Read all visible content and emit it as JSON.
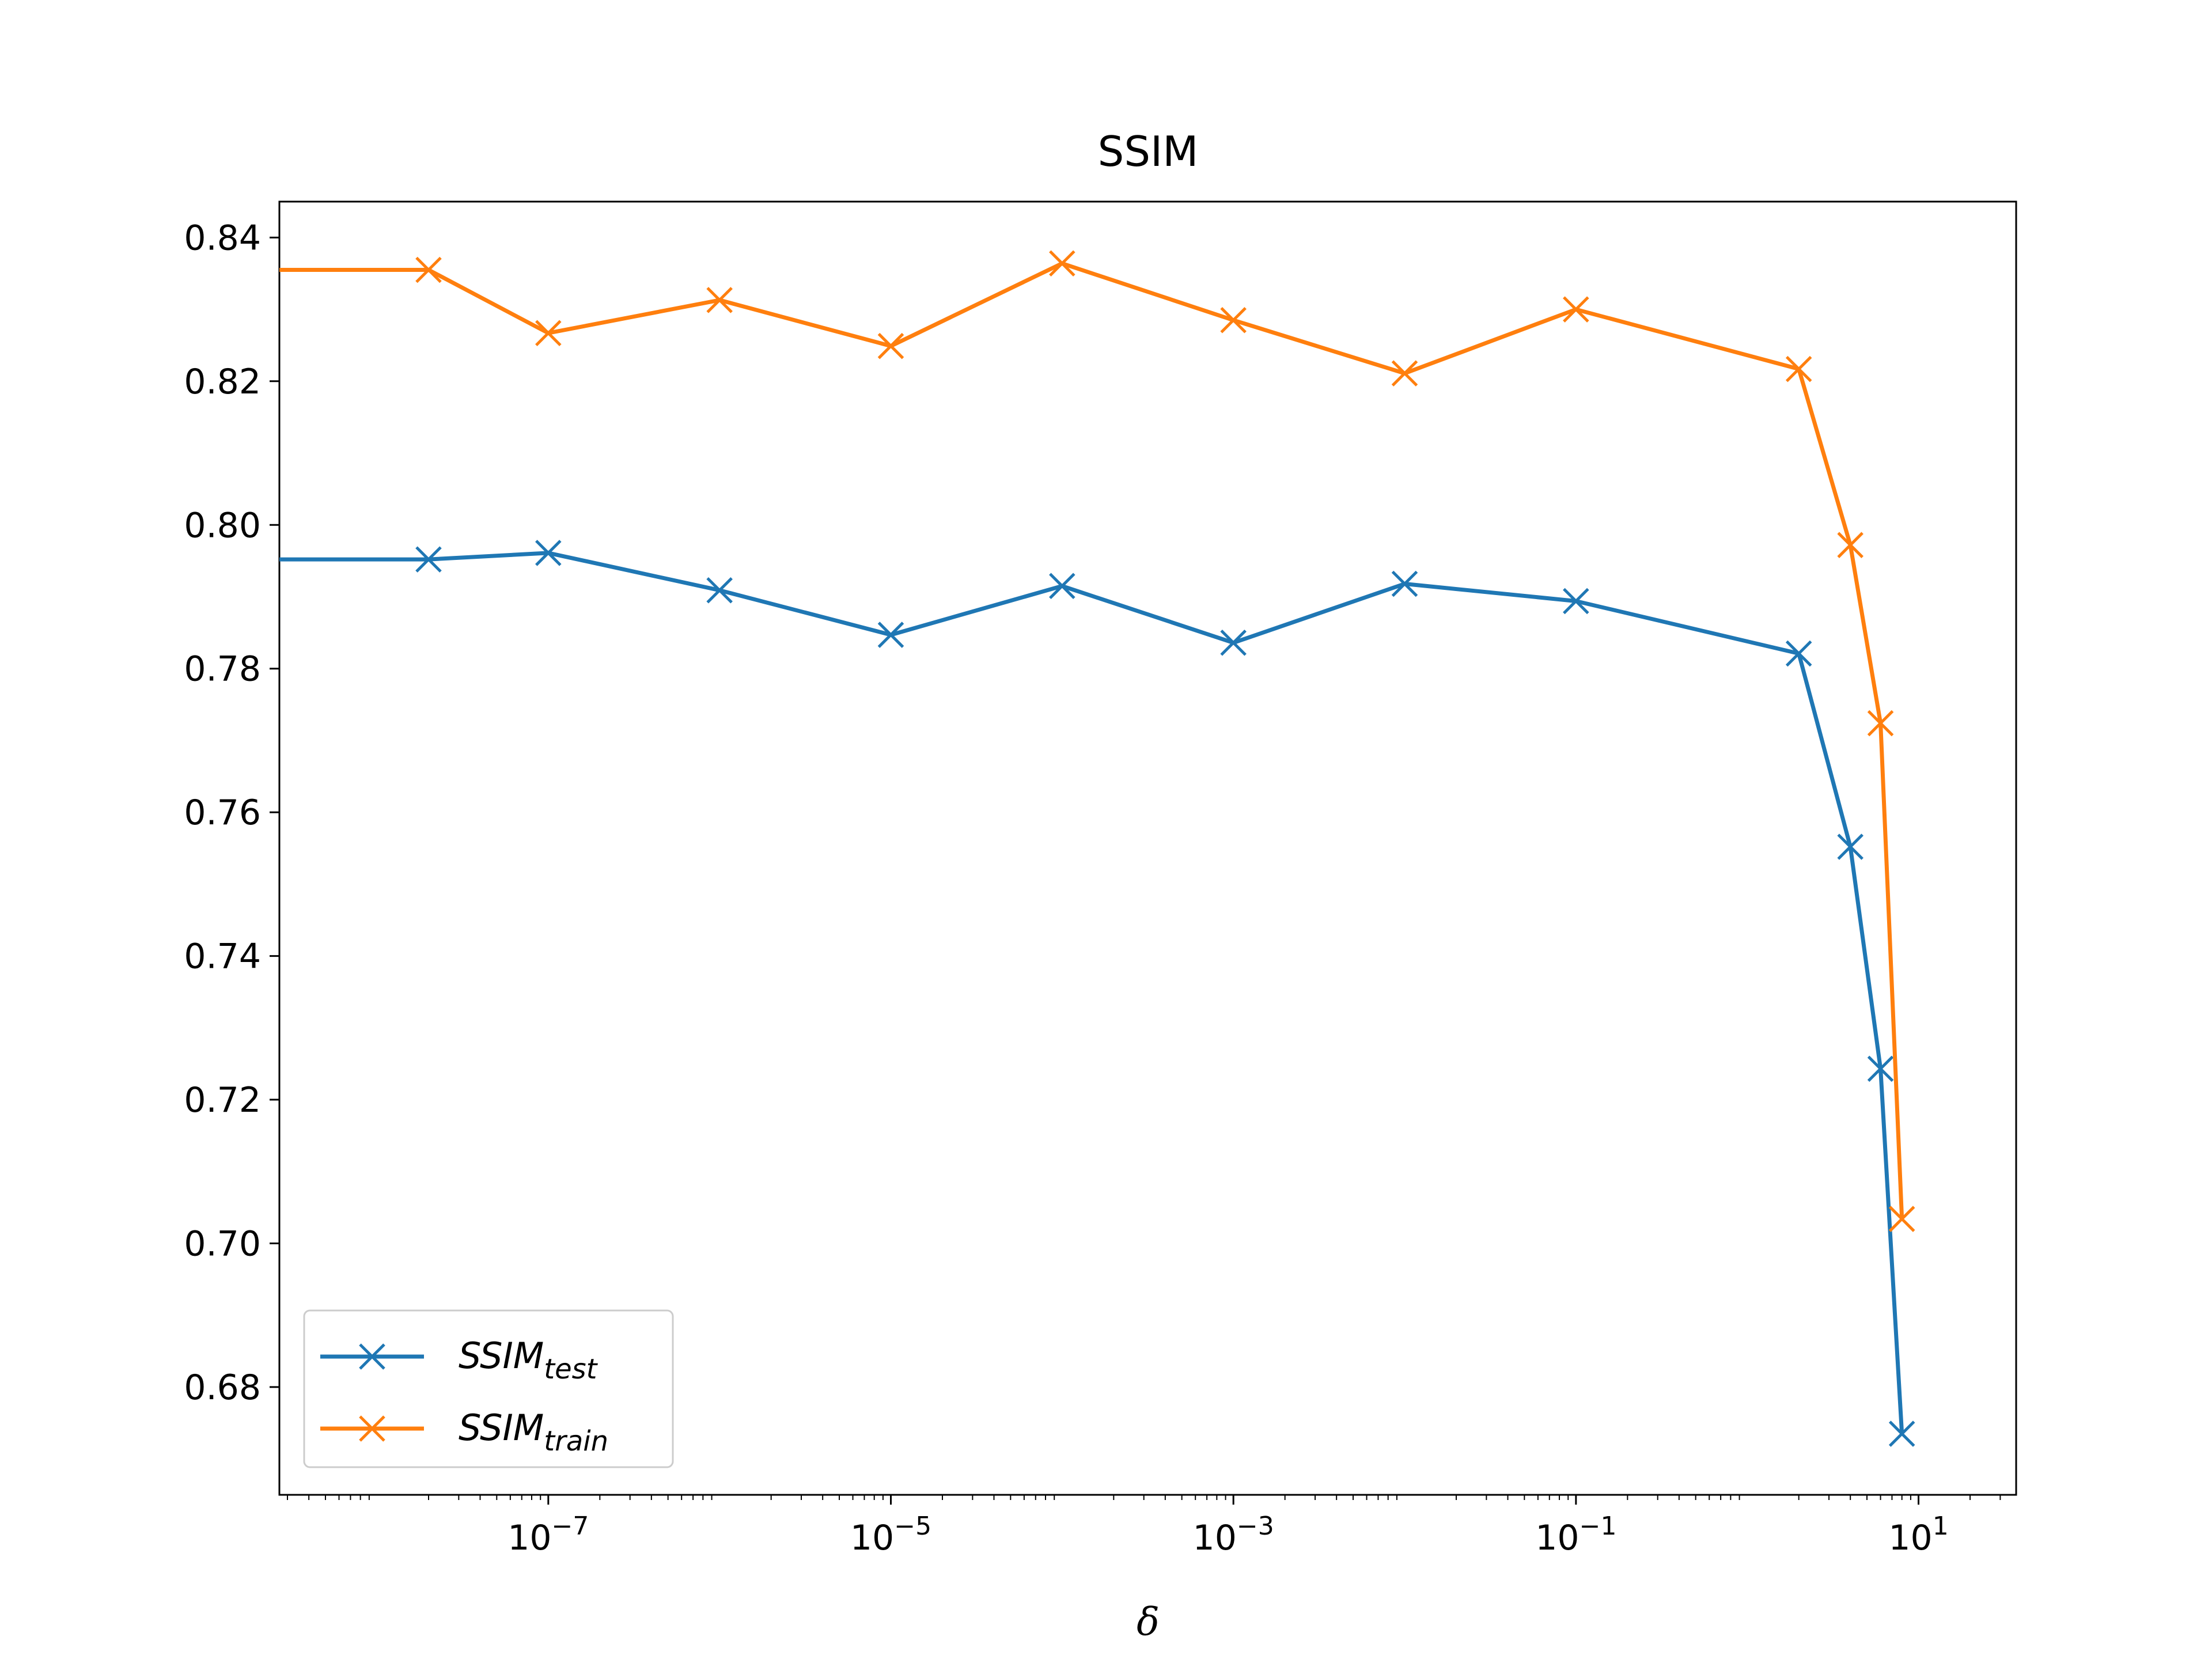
{
  "chart_data": {
    "type": "line",
    "title": "SSIM",
    "xlabel": "δ",
    "ylabel": "",
    "x_scale": "log",
    "xlim_exp": [
      -8.57,
      1.57
    ],
    "ylim": [
      0.665,
      0.845
    ],
    "x_ticks": [
      {
        "exp": -7,
        "label": "10",
        "sup": "−7"
      },
      {
        "exp": -5,
        "label": "10",
        "sup": "−5"
      },
      {
        "exp": -3,
        "label": "10",
        "sup": "−3"
      },
      {
        "exp": -1,
        "label": "10",
        "sup": "−1"
      },
      {
        "exp": 1,
        "label": "10",
        "sup": "1"
      }
    ],
    "y_ticks": [
      0.68,
      0.7,
      0.72,
      0.74,
      0.76,
      0.78,
      0.8,
      0.82,
      0.84
    ],
    "y_tick_labels": [
      "0.68",
      "0.70",
      "0.72",
      "0.74",
      "0.76",
      "0.78",
      "0.80",
      "0.82",
      "0.84"
    ],
    "grid": false,
    "legend_position": "lower-left",
    "x": [
      1e-09,
      2e-08,
      1e-07,
      1e-06,
      1e-05,
      0.0001,
      0.001,
      0.01,
      0.1,
      2,
      4,
      6,
      8
    ],
    "series": [
      {
        "name": "SSIM",
        "name_sub": "test",
        "color": "#1f77b4",
        "marker": "x",
        "values": [
          0.7952,
          0.7952,
          0.7961,
          0.7909,
          0.7847,
          0.7915,
          0.7836,
          0.7918,
          0.7894,
          0.7821,
          0.7552,
          0.7243,
          0.6735
        ]
      },
      {
        "name": "SSIM",
        "name_sub": "train",
        "color": "#ff7f0e",
        "marker": "x",
        "values": [
          0.8355,
          0.8355,
          0.8267,
          0.8313,
          0.8249,
          0.8364,
          0.8285,
          0.8211,
          0.83,
          0.8217,
          0.7972,
          0.7724,
          0.7034
        ]
      }
    ]
  }
}
